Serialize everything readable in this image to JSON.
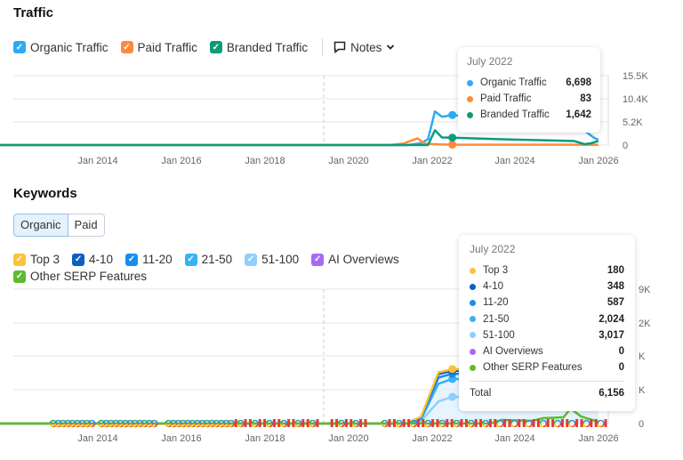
{
  "traffic": {
    "title": "Traffic",
    "legend": [
      {
        "label": "Organic Traffic",
        "color": "#2eaaf5"
      },
      {
        "label": "Paid Traffic",
        "color": "#ff8a3d"
      },
      {
        "label": "Branded Traffic",
        "color": "#0d9b7a"
      }
    ],
    "notes_label": "Notes",
    "y_ticks": [
      "15.5K",
      "10.4K",
      "5.2K",
      "0"
    ],
    "x_ticks": [
      "Jan 2014",
      "Jan 2016",
      "Jan 2018",
      "Jan 2020",
      "Jan 2022",
      "Jan 2024",
      "Jan 2026"
    ],
    "tooltip": {
      "title": "July 2022",
      "rows": [
        {
          "label": "Organic Traffic",
          "value": "6,698",
          "color": "#2eaaf5"
        },
        {
          "label": "Paid Traffic",
          "value": "83",
          "color": "#ff8a3d"
        },
        {
          "label": "Branded Traffic",
          "value": "1,642",
          "color": "#0d9b7a"
        }
      ]
    }
  },
  "keywords": {
    "title": "Keywords",
    "tabs": [
      "Organic",
      "Paid"
    ],
    "legend": [
      {
        "label": "Top 3",
        "color": "#fdc23a"
      },
      {
        "label": "4-10",
        "color": "#0a5fc2"
      },
      {
        "label": "11-20",
        "color": "#1a8cf0"
      },
      {
        "label": "21-50",
        "color": "#36b2f5"
      },
      {
        "label": "51-100",
        "color": "#8fd0fb"
      },
      {
        "label": "AI Overviews",
        "color": "#a56bf5"
      },
      {
        "label": "Other SERP Features",
        "color": "#5dbb2f"
      }
    ],
    "y_ticks": [
      "9K",
      "2K",
      "K",
      "K",
      "0"
    ],
    "x_ticks": [
      "Jan 2014",
      "Jan 2016",
      "Jan 2018",
      "Jan 2020",
      "Jan 2022",
      "Jan 2024",
      "Jan 2026"
    ],
    "tooltip": {
      "title": "July 2022",
      "rows": [
        {
          "label": "Top 3",
          "value": "180",
          "color": "#fdc23a"
        },
        {
          "label": "4-10",
          "value": "348",
          "color": "#0a5fc2"
        },
        {
          "label": "11-20",
          "value": "587",
          "color": "#1a8cf0"
        },
        {
          "label": "21-50",
          "value": "2,024",
          "color": "#36b2f5"
        },
        {
          "label": "51-100",
          "value": "3,017",
          "color": "#8fd0fb"
        },
        {
          "label": "AI Overviews",
          "value": "0",
          "color": "#a56bf5"
        },
        {
          "label": "Other SERP Features",
          "value": "0",
          "color": "#5dbb2f"
        }
      ],
      "total_label": "Total",
      "total_value": "6,156"
    }
  },
  "chart_data": [
    {
      "type": "line",
      "ylim": [
        0,
        15500
      ],
      "grid": true,
      "series": [
        {
          "name": "Organic Traffic",
          "color": "#2eaaf5",
          "points": [
            [
              "2011-07",
              0
            ],
            [
              "2021-06",
              0
            ],
            [
              "2021-10",
              400
            ],
            [
              "2021-12",
              1300
            ],
            [
              "2022-02",
              7500
            ],
            [
              "2022-04",
              6300
            ],
            [
              "2022-07",
              6698
            ],
            [
              "2025-09",
              3200
            ],
            [
              "2025-12",
              1500
            ],
            [
              "2026-01",
              1200
            ]
          ]
        },
        {
          "name": "Paid Traffic",
          "color": "#ff8a3d",
          "points": [
            [
              "2011-07",
              0
            ],
            [
              "2021-01",
              0
            ],
            [
              "2021-05",
              350
            ],
            [
              "2021-09",
              1500
            ],
            [
              "2021-11",
              300
            ],
            [
              "2022-03",
              150
            ],
            [
              "2022-07",
              83
            ],
            [
              "2026-01",
              60
            ]
          ]
        },
        {
          "name": "Branded Traffic",
          "color": "#0d9b7a",
          "points": [
            [
              "2011-07",
              0
            ],
            [
              "2021-12",
              0
            ],
            [
              "2022-02",
              3300
            ],
            [
              "2022-04",
              1700
            ],
            [
              "2022-07",
              1642
            ],
            [
              "2023-09",
              1300
            ],
            [
              "2025-06",
              900
            ],
            [
              "2025-09",
              200
            ],
            [
              "2025-11",
              400
            ],
            [
              "2026-01",
              900
            ]
          ]
        }
      ]
    },
    {
      "type": "area",
      "ylim": [
        0,
        15200
      ],
      "grid": true,
      "stacked": true,
      "series": [
        {
          "name": "51-100",
          "color": "#8fd0fb",
          "points": [
            [
              "2011-07",
              0
            ],
            [
              "2021-06",
              0
            ],
            [
              "2021-10",
              300
            ],
            [
              "2022-03",
              2500
            ],
            [
              "2022-07",
              3017
            ],
            [
              "2026-01",
              3000
            ]
          ]
        },
        {
          "name": "21-50",
          "color": "#36b2f5",
          "points": [
            [
              "2011-07",
              0
            ],
            [
              "2021-06",
              0
            ],
            [
              "2021-10",
              500
            ],
            [
              "2022-03",
              4500
            ],
            [
              "2022-07",
              5041
            ],
            [
              "2026-01",
              5000
            ]
          ]
        },
        {
          "name": "11-20",
          "color": "#1a8cf0",
          "points": [
            [
              "2011-07",
              0
            ],
            [
              "2021-06",
              0
            ],
            [
              "2021-10",
              650
            ],
            [
              "2022-03",
              5200
            ],
            [
              "2022-07",
              5628
            ],
            [
              "2026-01",
              5500
            ]
          ]
        },
        {
          "name": "4-10",
          "color": "#0a5fc2",
          "points": [
            [
              "2011-07",
              0
            ],
            [
              "2021-06",
              0
            ],
            [
              "2021-10",
              750
            ],
            [
              "2022-03",
              5600
            ],
            [
              "2022-07",
              5976
            ],
            [
              "2026-01",
              5900
            ]
          ]
        },
        {
          "name": "Top 3",
          "color": "#fdc23a",
          "points": [
            [
              "2011-07",
              0
            ],
            [
              "2021-06",
              0
            ],
            [
              "2021-10",
              800
            ],
            [
              "2022-03",
              5800
            ],
            [
              "2022-07",
              6156
            ],
            [
              "2026-01",
              6100
            ]
          ]
        },
        {
          "name": "Other SERP Features",
          "color": "#5dbb2f",
          "points": [
            [
              "2011-07",
              0
            ],
            [
              "2023-06",
              0
            ],
            [
              "2023-09",
              400
            ],
            [
              "2024-06",
              300
            ],
            [
              "2024-09",
              600
            ],
            [
              "2025-03",
              700
            ],
            [
              "2025-05",
              1700
            ],
            [
              "2025-08",
              800
            ],
            [
              "2026-01",
              200
            ]
          ]
        }
      ]
    }
  ]
}
